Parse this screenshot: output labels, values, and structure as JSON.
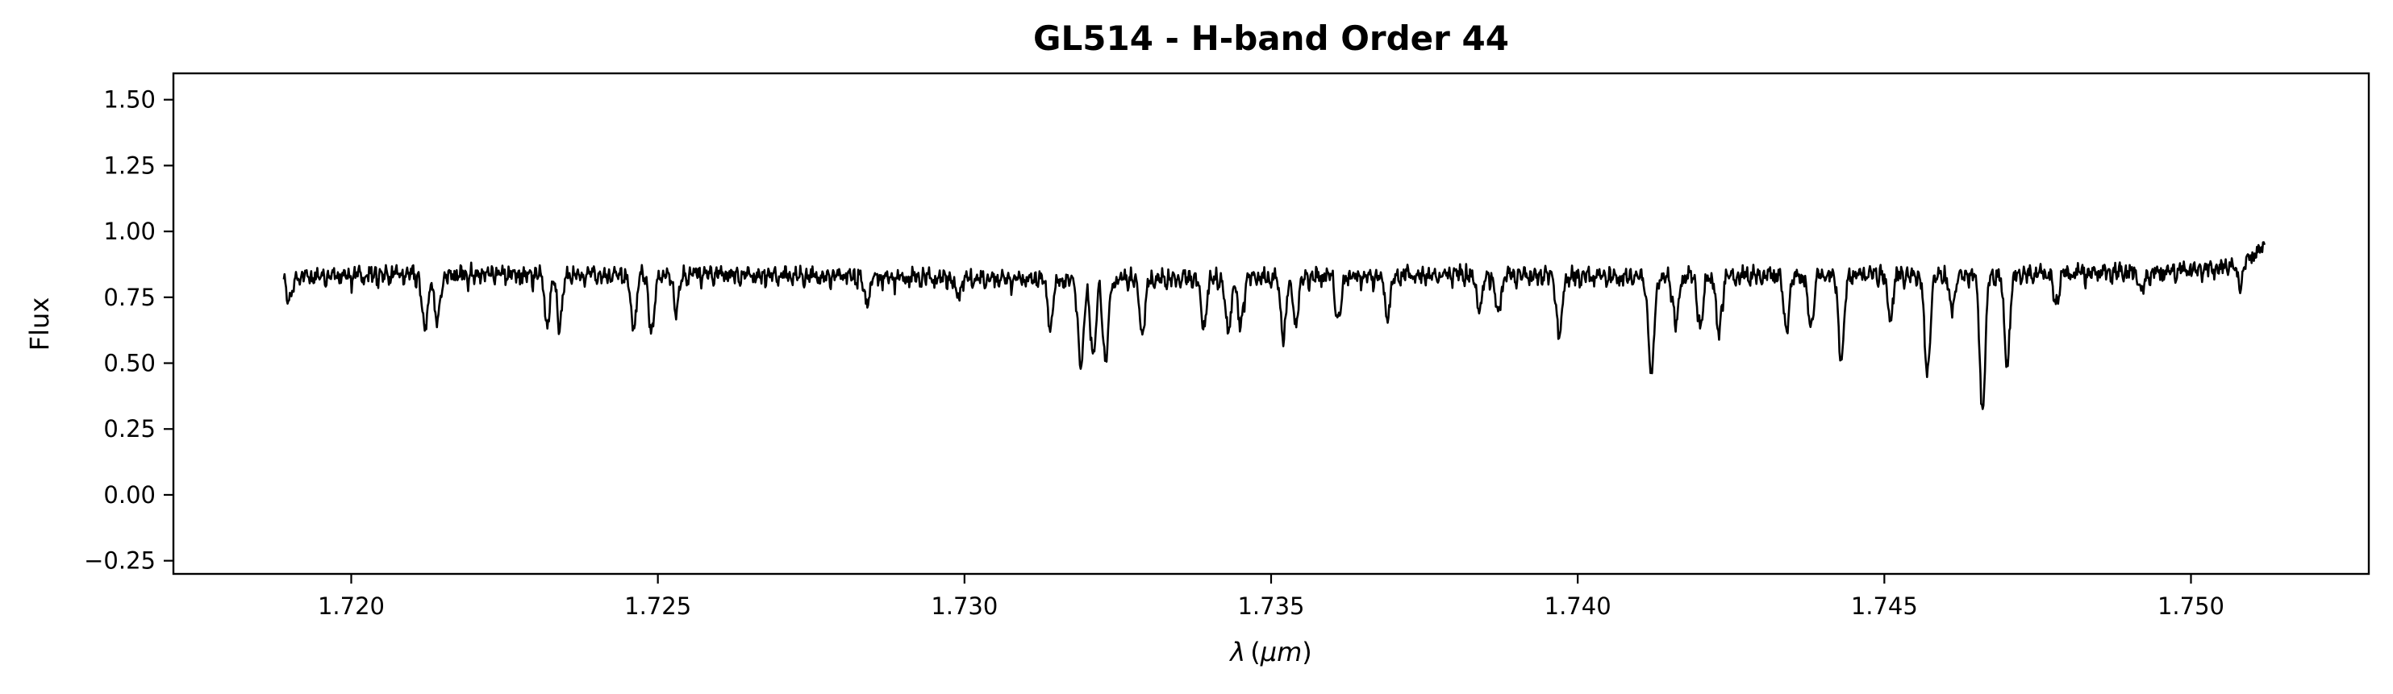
{
  "chart_data": {
    "type": "line",
    "title": "GL514 - H-band Order 44",
    "xlabel": "λ (μm)",
    "xlabel_parts": {
      "lambda": "λ",
      "open": "(",
      "unit": "μm",
      "close": ")"
    },
    "ylabel": "Flux",
    "xlim": [
      1.7171,
      1.7529
    ],
    "ylim": [
      -0.3,
      1.6
    ],
    "xticks": [
      1.72,
      1.725,
      1.73,
      1.735,
      1.74,
      1.745,
      1.75
    ],
    "xtick_labels": [
      "1.720",
      "1.725",
      "1.730",
      "1.735",
      "1.740",
      "1.745",
      "1.750"
    ],
    "yticks": [
      -0.25,
      0.0,
      0.25,
      0.5,
      0.75,
      1.0,
      1.25,
      1.5
    ],
    "ytick_labels": [
      "−0.25",
      "0.00",
      "0.25",
      "0.50",
      "0.75",
      "1.00",
      "1.25",
      "1.50"
    ],
    "grid": false,
    "line_color": "#000000",
    "series": [
      {
        "x_range": [
          1.7189,
          1.7512
        ],
        "baseline": [
          [
            1.7189,
            0.83
          ],
          [
            1.7205,
            0.84
          ],
          [
            1.723,
            0.84
          ],
          [
            1.726,
            0.84
          ],
          [
            1.729,
            0.83
          ],
          [
            1.732,
            0.82
          ],
          [
            1.735,
            0.83
          ],
          [
            1.738,
            0.84
          ],
          [
            1.741,
            0.83
          ],
          [
            1.744,
            0.84
          ],
          [
            1.747,
            0.84
          ],
          [
            1.7495,
            0.85
          ],
          [
            1.7505,
            0.87
          ],
          [
            1.7509,
            0.89
          ],
          [
            1.7512,
            0.95
          ]
        ],
        "absorption_lines": [
          [
            1.719,
            0.74
          ],
          [
            1.7212,
            0.63
          ],
          [
            1.7214,
            0.65
          ],
          [
            1.7232,
            0.66
          ],
          [
            1.7234,
            0.65
          ],
          [
            1.7246,
            0.63
          ],
          [
            1.7249,
            0.62
          ],
          [
            1.7253,
            0.72
          ],
          [
            1.7284,
            0.74
          ],
          [
            1.7299,
            0.76
          ],
          [
            1.7314,
            0.65
          ],
          [
            1.7319,
            0.48
          ],
          [
            1.7321,
            0.52
          ],
          [
            1.7323,
            0.51
          ],
          [
            1.7329,
            0.62
          ],
          [
            1.7339,
            0.64
          ],
          [
            1.7343,
            0.62
          ],
          [
            1.7345,
            0.64
          ],
          [
            1.7352,
            0.61
          ],
          [
            1.7354,
            0.66
          ],
          [
            1.7361,
            0.66
          ],
          [
            1.7369,
            0.69
          ],
          [
            1.7384,
            0.71
          ],
          [
            1.7387,
            0.69
          ],
          [
            1.7397,
            0.6
          ],
          [
            1.7412,
            0.45
          ],
          [
            1.7416,
            0.65
          ],
          [
            1.742,
            0.64
          ],
          [
            1.7423,
            0.62
          ],
          [
            1.7434,
            0.64
          ],
          [
            1.7438,
            0.64
          ],
          [
            1.7443,
            0.52
          ],
          [
            1.7451,
            0.68
          ],
          [
            1.7457,
            0.46
          ],
          [
            1.7461,
            0.71
          ],
          [
            1.7466,
            0.33
          ],
          [
            1.747,
            0.51
          ],
          [
            1.7478,
            0.73
          ],
          [
            1.7492,
            0.78
          ],
          [
            1.7508,
            0.81
          ]
        ]
      }
    ]
  }
}
